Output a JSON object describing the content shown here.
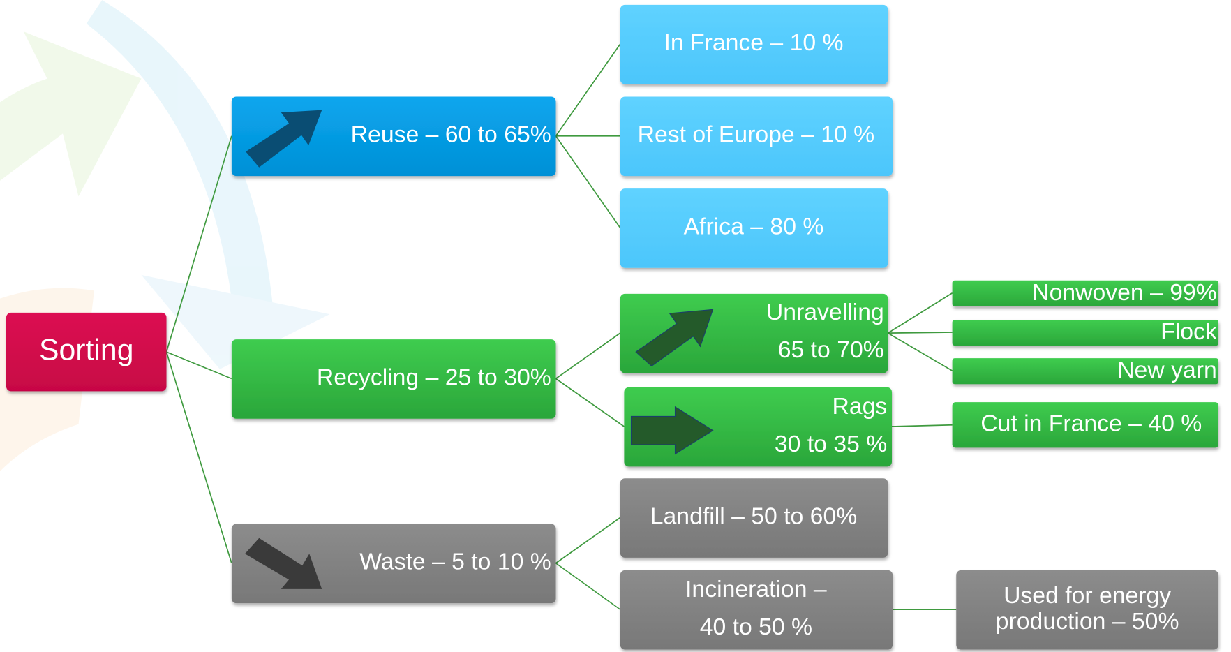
{
  "root": {
    "label": "Sorting"
  },
  "branches": [
    {
      "label": "Reuse – 60 to 65%",
      "children": [
        {
          "label": "In France – 10 %"
        },
        {
          "label": "Rest of Europe – 10 %"
        },
        {
          "label": "Africa – 80 %"
        }
      ]
    },
    {
      "label": "Recycling – 25 to 30%",
      "children": [
        {
          "lines": [
            "Unravelling",
            "65 to 70%"
          ],
          "children": [
            {
              "label": "Nonwoven – 99%"
            },
            {
              "label": "Flock"
            },
            {
              "label": "New yarn"
            }
          ]
        },
        {
          "lines": [
            "Rags",
            "30 to 35 %"
          ],
          "children": [
            {
              "label": "Cut in France – 40 %"
            }
          ]
        }
      ]
    },
    {
      "label": "Waste – 5 to 10 %",
      "children": [
        {
          "label": "Landfill – 50 to 60%"
        },
        {
          "lines": [
            "Incineration –",
            "40 to 50 %"
          ],
          "children": [
            {
              "lines": [
                "Used for energy",
                "production – 50%"
              ]
            }
          ]
        }
      ]
    }
  ]
}
